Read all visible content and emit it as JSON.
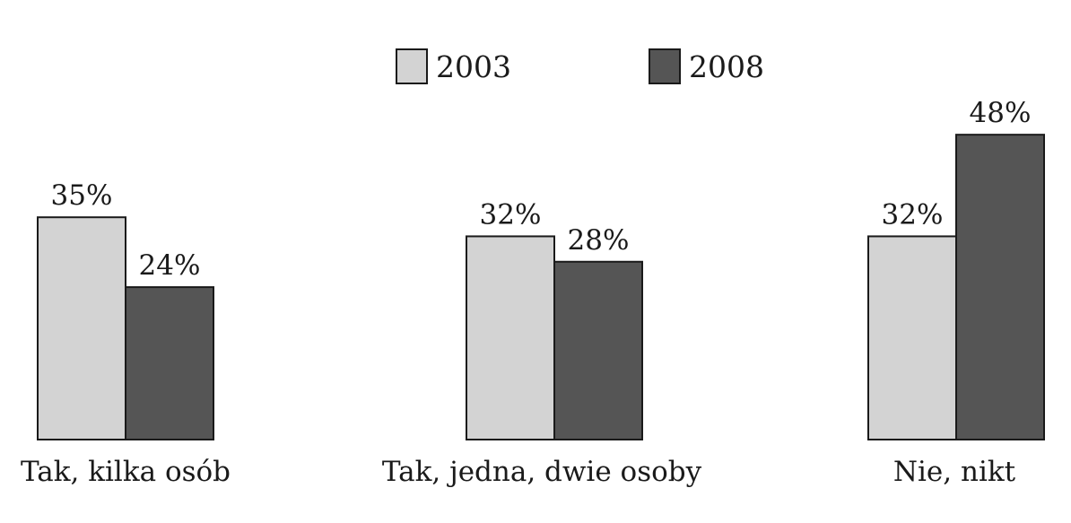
{
  "chart_data": {
    "type": "bar",
    "title": "",
    "xlabel": "",
    "ylabel": "",
    "categories": [
      "Tak, kilka osób",
      "Tak, jedna, dwie osoby",
      "Nie, nikt"
    ],
    "series": [
      {
        "name": "2003",
        "values": [
          35,
          32,
          32
        ],
        "labels": [
          "35%",
          "32%",
          "32%"
        ],
        "color": "#d3d3d3"
      },
      {
        "name": "2008",
        "values": [
          24,
          28,
          48
        ],
        "labels": [
          "24%",
          "28%",
          "48%"
        ],
        "color": "#555555"
      }
    ],
    "value_suffix": "%",
    "ylim": [
      0,
      55
    ],
    "legend_position": "top-center",
    "grid": false
  }
}
